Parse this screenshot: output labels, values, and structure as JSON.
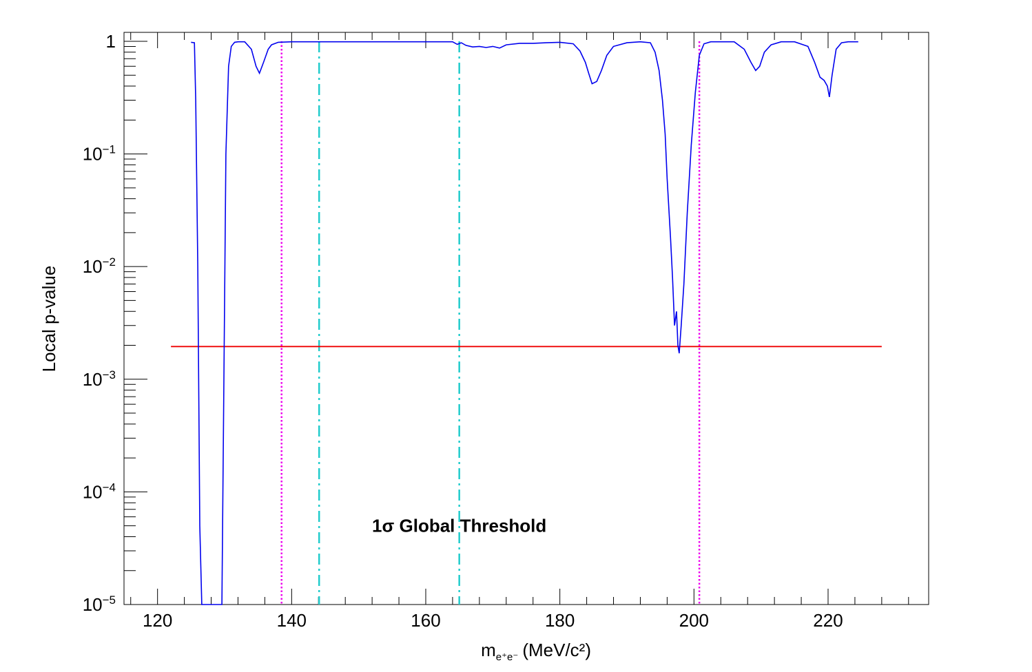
{
  "chart_data": {
    "type": "line",
    "title": "",
    "xlabel_base": "m",
    "xlabel_sub": "e⁺e⁻",
    "xlabel_unit": "(MeV/c²)",
    "ylabel": "Local p-value",
    "x_range": [
      115,
      235
    ],
    "y_range": [
      1e-05,
      1.2
    ],
    "y_scale": "log",
    "x_ticks": [
      "120",
      "140",
      "160",
      "180",
      "200",
      "220"
    ],
    "y_ticks": [
      {
        "value": 1,
        "base": "1",
        "exp": ""
      },
      {
        "value": 0.1,
        "base": "10",
        "exp": "−1"
      },
      {
        "value": 0.01,
        "base": "10",
        "exp": "−2"
      },
      {
        "value": 0.001,
        "base": "10",
        "exp": "−3"
      },
      {
        "value": 0.0001,
        "base": "10",
        "exp": "−4"
      },
      {
        "value": 1e-05,
        "base": "10",
        "exp": "−5"
      }
    ],
    "grid": false,
    "colors": {
      "series": "#0000ee",
      "threshold": "#ee0000",
      "dotted": "#ee00ee",
      "dashdot": "#22cccc"
    },
    "series": [
      {
        "x": [
          125.0,
          125.5,
          125.7,
          126.0,
          126.3,
          126.6,
          129.6,
          129.9,
          130.2,
          130.6,
          131.0,
          131.5,
          132.0,
          133.0,
          134.0,
          134.7,
          135.2,
          135.8,
          136.5,
          137.0,
          138.0,
          140.0,
          141.5,
          144.0,
          150.0,
          160.0,
          164.0,
          164.7,
          165.3,
          166.0,
          167.0,
          168.0,
          169.0,
          170.0,
          171.0,
          172.0,
          174.0,
          176.0,
          178.0,
          180.0,
          182.0,
          183.0,
          183.8,
          184.3,
          184.8,
          185.5,
          186.2,
          187.0,
          188.0,
          190.0,
          192.0,
          193.5,
          194.2,
          194.8,
          195.3,
          195.7,
          196.0,
          196.5,
          196.8,
          197.1,
          197.4,
          197.6,
          197.8,
          198.1,
          198.5,
          199.0,
          199.6,
          200.2,
          200.8,
          201.5,
          202.5,
          204.0,
          206.0,
          207.5,
          208.5,
          209.2,
          209.8,
          210.5,
          211.5,
          213.0,
          215.0,
          217.0,
          218.0,
          218.8,
          219.4,
          219.9,
          220.2,
          220.6,
          221.2,
          222.0,
          223.0,
          224.5
        ],
        "y": [
          0.98,
          0.97,
          0.3,
          0.01,
          5e-05,
          5e-06,
          5e-06,
          0.001,
          0.1,
          0.6,
          0.9,
          0.98,
          0.99,
          0.99,
          0.85,
          0.6,
          0.52,
          0.65,
          0.85,
          0.93,
          0.98,
          0.99,
          0.99,
          0.99,
          0.99,
          0.99,
          0.99,
          0.94,
          0.97,
          0.92,
          0.89,
          0.9,
          0.88,
          0.9,
          0.87,
          0.93,
          0.96,
          0.96,
          0.97,
          0.98,
          0.95,
          0.82,
          0.65,
          0.52,
          0.42,
          0.44,
          0.55,
          0.75,
          0.9,
          0.97,
          0.99,
          0.97,
          0.8,
          0.55,
          0.3,
          0.15,
          0.06,
          0.018,
          0.008,
          0.003,
          0.004,
          0.002,
          0.0017,
          0.003,
          0.007,
          0.03,
          0.12,
          0.35,
          0.75,
          0.95,
          0.99,
          0.99,
          0.99,
          0.85,
          0.65,
          0.55,
          0.6,
          0.8,
          0.93,
          0.99,
          0.99,
          0.9,
          0.65,
          0.48,
          0.45,
          0.4,
          0.32,
          0.5,
          0.85,
          0.97,
          0.99,
          0.99
        ]
      }
    ],
    "threshold": {
      "y": 0.00195,
      "x_start": 122,
      "x_end": 228
    },
    "dotted_lines_x": [
      138.5,
      200.8
    ],
    "dashdot_lines_x": [
      144.1,
      165.0
    ],
    "annotation": {
      "text": "1σ Global Threshold",
      "x": 165,
      "y": 5e-05
    }
  }
}
